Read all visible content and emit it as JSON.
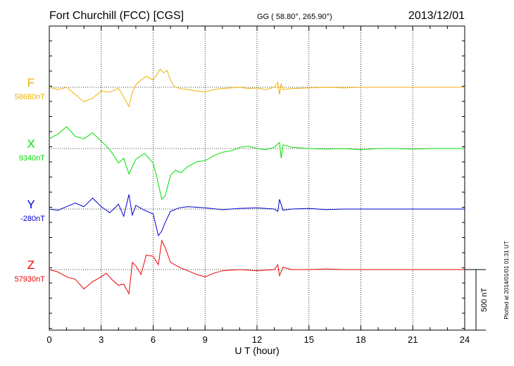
{
  "header": {
    "station": "Fort Churchill (FCC)  [CGS]",
    "coords": "GG ( 58.80°, 265.90°)",
    "date": "2013/12/01"
  },
  "side_note": "Plotted at 2014/01/01 01:31  UT",
  "colors": {
    "F": "#f0b000",
    "X": "#00e000",
    "Y": "#0000d0",
    "Z": "#ee0000",
    "axis": "#000000"
  },
  "chart_data": {
    "type": "line",
    "title": "Fort Churchill (FCC)  [CGS]",
    "xlabel": "U T (hour)",
    "ylabel": "",
    "xlim": [
      0,
      24
    ],
    "xticks": [
      0,
      3,
      6,
      9,
      12,
      15,
      18,
      21,
      24
    ],
    "xtick_labels": [
      "0",
      "3",
      "6",
      "9",
      "12",
      "15",
      "18",
      "21",
      "24"
    ],
    "grid": "dotted vertical every 3 h; dotted baseline per trace",
    "scale_bar": "500 nT",
    "series": [
      {
        "name": "F",
        "baseline_label": "58680nT",
        "color": "#f0b000",
        "x": [
          0,
          0.5,
          1.0,
          1.5,
          2.0,
          2.5,
          3.0,
          3.5,
          4.0,
          4.3,
          4.6,
          4.8,
          5.0,
          5.3,
          5.6,
          6.0,
          6.2,
          6.4,
          6.6,
          6.8,
          7.0,
          7.2,
          7.5,
          8.0,
          8.5,
          9.0,
          9.5,
          10,
          10.5,
          11,
          11.5,
          12,
          12.5,
          13,
          13.2,
          13.3,
          13.4,
          13.5,
          14,
          15,
          16,
          17,
          18,
          19,
          20,
          21,
          22,
          23,
          24
        ],
        "values": [
          0,
          -20,
          0,
          -60,
          -120,
          -90,
          -30,
          -40,
          -10,
          -80,
          -160,
          -40,
          20,
          60,
          90,
          60,
          100,
          150,
          120,
          140,
          60,
          10,
          -10,
          -20,
          -30,
          -40,
          -20,
          -10,
          -5,
          0,
          -10,
          -5,
          -20,
          0,
          40,
          -60,
          30,
          -20,
          -10,
          -5,
          0,
          -5,
          0,
          0,
          0,
          0,
          0,
          0,
          0
        ]
      },
      {
        "name": "X",
        "baseline_label": "9340nT",
        "color": "#00e000",
        "x": [
          0,
          0.5,
          1.0,
          1.5,
          2.0,
          2.5,
          3.0,
          3.3,
          3.6,
          4.0,
          4.3,
          4.6,
          5.0,
          5.5,
          6.0,
          6.2,
          6.5,
          6.7,
          7.0,
          7.3,
          7.6,
          8.0,
          8.5,
          9.0,
          9.5,
          10,
          10.5,
          11,
          11.5,
          12,
          12.5,
          13,
          13.3,
          13.4,
          13.5,
          14,
          15,
          16,
          17,
          18,
          19,
          20,
          21,
          22,
          23,
          24
        ],
        "values": [
          80,
          120,
          180,
          100,
          80,
          130,
          60,
          20,
          -30,
          -120,
          -80,
          -210,
          -90,
          -40,
          -120,
          -230,
          -420,
          -390,
          -220,
          -180,
          -200,
          -150,
          -110,
          -100,
          -60,
          -30,
          -20,
          10,
          20,
          0,
          -10,
          10,
          50,
          -80,
          30,
          10,
          0,
          -5,
          0,
          -10,
          0,
          0,
          -5,
          0,
          0,
          0
        ]
      },
      {
        "name": "Y",
        "baseline_label": "-280nT",
        "color": "#0000d0",
        "x": [
          0,
          0.5,
          1.0,
          1.5,
          2.0,
          2.5,
          3.0,
          3.5,
          4.0,
          4.3,
          4.6,
          4.8,
          5.0,
          5.5,
          6.0,
          6.3,
          6.5,
          6.7,
          7.0,
          7.5,
          8.0,
          9,
          10,
          11,
          12,
          13,
          13.2,
          13.3,
          13.5,
          14,
          15,
          16,
          17,
          18,
          19,
          20,
          21,
          22,
          23,
          24
        ],
        "values": [
          0,
          -10,
          20,
          50,
          20,
          90,
          20,
          -30,
          40,
          -60,
          120,
          -50,
          30,
          -10,
          -40,
          -220,
          -180,
          -110,
          -20,
          10,
          20,
          10,
          -5,
          5,
          10,
          0,
          -20,
          80,
          -10,
          0,
          5,
          -5,
          0,
          0,
          0,
          0,
          0,
          0,
          0,
          0
        ]
      },
      {
        "name": "Z",
        "baseline_label": "57930nT",
        "color": "#ee0000",
        "x": [
          0,
          0.5,
          1.0,
          1.5,
          2.0,
          2.5,
          3.0,
          3.3,
          3.6,
          4.0,
          4.3,
          4.6,
          4.8,
          5.0,
          5.3,
          5.6,
          6.0,
          6.3,
          6.5,
          6.7,
          7.0,
          7.5,
          8.0,
          8.5,
          9.0,
          9.5,
          10,
          11,
          12,
          13,
          13.2,
          13.3,
          13.5,
          14,
          15,
          16,
          17,
          18,
          19,
          20,
          21,
          22,
          23,
          24
        ],
        "values": [
          0,
          -20,
          -60,
          -80,
          -160,
          -100,
          -60,
          -30,
          -80,
          -130,
          -120,
          -200,
          60,
          30,
          -40,
          120,
          110,
          40,
          240,
          180,
          60,
          20,
          -10,
          -40,
          -60,
          -30,
          -10,
          0,
          -10,
          0,
          40,
          -50,
          20,
          0,
          0,
          5,
          0,
          0,
          0,
          0,
          0,
          0,
          0,
          0
        ]
      }
    ]
  }
}
